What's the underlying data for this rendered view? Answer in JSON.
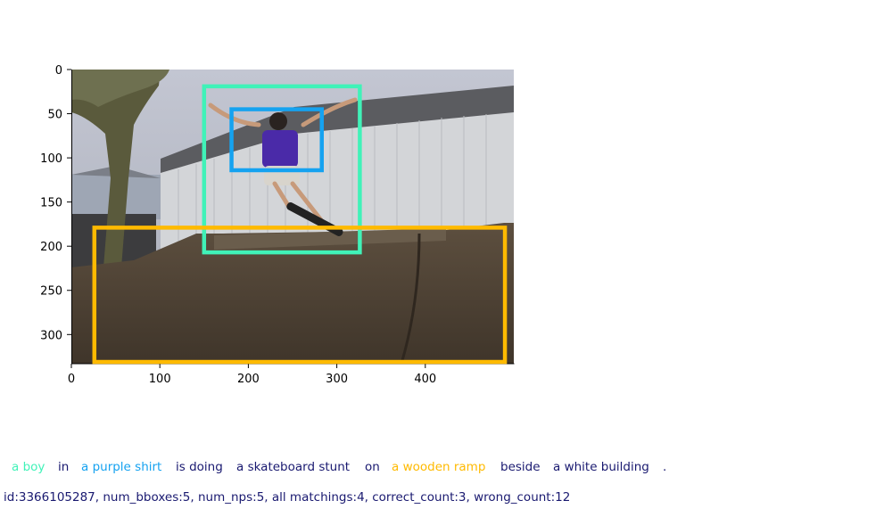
{
  "figure": {
    "x_ticks": [
      "0",
      "100",
      "200",
      "300",
      "400"
    ],
    "y_ticks": [
      "0",
      "50",
      "100",
      "150",
      "200",
      "250",
      "300"
    ],
    "image_size": {
      "width": 500,
      "height": 333
    },
    "boxes": [
      {
        "name": "a boy",
        "color": "#40f2b8",
        "x1": 150,
        "y1": 19,
        "x2": 326,
        "y2": 207
      },
      {
        "name": "a purple shirt",
        "color": "#15a2f0",
        "x1": 181,
        "y1": 45,
        "x2": 283,
        "y2": 114
      },
      {
        "name": "a wooden ramp",
        "color": "#ffba00",
        "x1": 26,
        "y1": 179,
        "x2": 490,
        "y2": 331
      }
    ],
    "photo_colors": {
      "sky": "#b9bdc8",
      "building": "#c9ccd0",
      "ramp": "#4e4234",
      "tree": "#5a5a3c"
    }
  },
  "caption": {
    "phrases": [
      {
        "text": "a boy",
        "color": "#40f2b8"
      },
      {
        "text": "in",
        "color": "#191970"
      },
      {
        "text": "a purple shirt",
        "color": "#15a2f0"
      },
      {
        "text": "is doing",
        "color": "#191970"
      },
      {
        "text": "a skateboard stunt",
        "color": "#191970"
      },
      {
        "text": "on",
        "color": "#191970"
      },
      {
        "text": "a wooden ramp",
        "color": "#ffba00"
      },
      {
        "text": "beside",
        "color": "#191970"
      },
      {
        "text": "a white building",
        "color": "#191970"
      },
      {
        "text": ".",
        "color": "#191970"
      }
    ]
  },
  "info_line": "id:3366105287, num_bboxes:5, num_nps:5, all matchings:4, correct_count:3, wrong_count:12"
}
